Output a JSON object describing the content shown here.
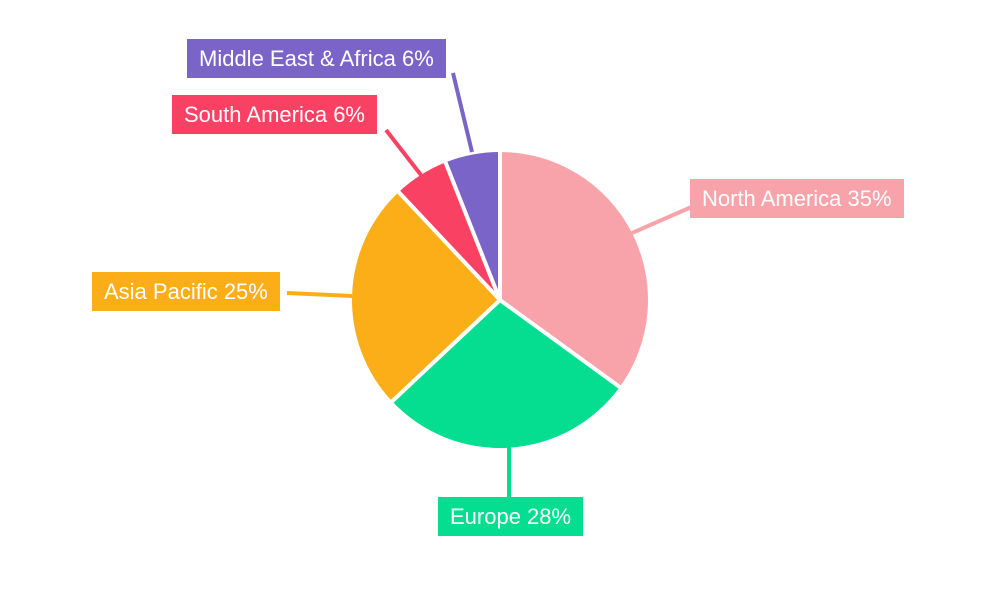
{
  "chart_data": {
    "type": "pie",
    "title": "",
    "background": "#ffffff",
    "label_text_color": "#ffffff",
    "start_angle_deg": 0,
    "direction": "clockwise",
    "separator_color": "#ffffff",
    "slices": [
      {
        "label": "North America",
        "value": 35,
        "display": "North America 35%",
        "color": "#F8A3A9"
      },
      {
        "label": "Europe",
        "value": 28,
        "display": "Europe 28%",
        "color": "#05DE91"
      },
      {
        "label": "Asia Pacific",
        "value": 25,
        "display": "Asia Pacific 25%",
        "color": "#FBAE17"
      },
      {
        "label": "South America",
        "value": 6,
        "display": "South America 6%",
        "color": "#F94263"
      },
      {
        "label": "Middle East & Africa",
        "value": 6,
        "display": "Middle East & Africa 6%",
        "color": "#7B64C7"
      }
    ]
  }
}
